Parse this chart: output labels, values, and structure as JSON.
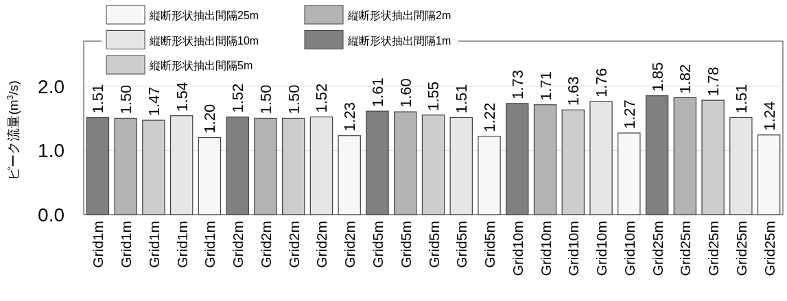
{
  "chart_data": {
    "type": "bar",
    "ylabel": "ピーク流量(m$^{3}$/s)",
    "categories": [
      "Grid1m",
      "Grid1m",
      "Grid1m",
      "Grid1m",
      "Grid1m",
      "Grid2m",
      "Grid2m",
      "Grid2m",
      "Grid2m",
      "Grid2m",
      "Grid5m",
      "Grid5m",
      "Grid5m",
      "Grid5m",
      "Grid5m",
      "Grid10m",
      "Grid10m",
      "Grid10m",
      "Grid10m",
      "Grid10m",
      "Grid25m",
      "Grid25m",
      "Grid25m",
      "Grid25m",
      "Grid25m"
    ],
    "series": [
      {
        "name": "縦断形状抽出間隔1m",
        "color": "#808080",
        "values": [
          1.51,
          null,
          null,
          null,
          null,
          1.52,
          null,
          null,
          null,
          null,
          1.61,
          null,
          null,
          null,
          null,
          1.73,
          null,
          null,
          null,
          null,
          1.85,
          null,
          null,
          null,
          null
        ],
        "value_labels": [
          "1.51",
          null,
          null,
          null,
          null,
          "1.52",
          null,
          null,
          null,
          null,
          "1.61",
          null,
          null,
          null,
          null,
          "1.73",
          null,
          null,
          null,
          null,
          "1.85",
          null,
          null,
          null,
          null
        ]
      },
      {
        "name": "縦断形状抽出間隔2m",
        "color": "#b4b4b4",
        "values": [
          null,
          1.5,
          null,
          null,
          null,
          null,
          1.5,
          null,
          null,
          null,
          null,
          1.6,
          null,
          null,
          null,
          null,
          1.71,
          null,
          null,
          null,
          null,
          1.82,
          null,
          null,
          null
        ],
        "value_labels": [
          null,
          "1.50",
          null,
          null,
          null,
          null,
          "1.50",
          null,
          null,
          null,
          null,
          "1.60",
          null,
          null,
          null,
          null,
          "1.71",
          null,
          null,
          null,
          null,
          "1.82",
          null,
          null,
          null
        ]
      },
      {
        "name": "縦断形状抽出間隔5m",
        "color": "#cdcdcd",
        "values": [
          null,
          null,
          1.47,
          null,
          null,
          null,
          null,
          1.5,
          null,
          null,
          null,
          null,
          1.55,
          null,
          null,
          null,
          null,
          1.63,
          null,
          null,
          null,
          null,
          1.78,
          null,
          null
        ],
        "value_labels": [
          null,
          null,
          "1.47",
          null,
          null,
          null,
          null,
          "1.50",
          null,
          null,
          null,
          null,
          "1.55",
          null,
          null,
          null,
          null,
          "1.63",
          null,
          null,
          null,
          null,
          "1.78",
          null,
          null
        ]
      },
      {
        "name": "縦断形状抽出間隔10m",
        "color": "#e6e6e6",
        "values": [
          null,
          null,
          null,
          1.54,
          null,
          null,
          null,
          null,
          1.52,
          null,
          null,
          null,
          null,
          1.51,
          null,
          null,
          null,
          null,
          1.76,
          null,
          null,
          null,
          null,
          1.51,
          null
        ],
        "value_labels": [
          null,
          null,
          null,
          "1.54",
          null,
          null,
          null,
          null,
          "1.52",
          null,
          null,
          null,
          null,
          "1.51",
          null,
          null,
          null,
          null,
          "1.76",
          null,
          null,
          null,
          null,
          "1.51",
          null
        ]
      },
      {
        "name": "縦断形状抽出間隔25m",
        "color": "#f7f7f7",
        "values": [
          null,
          null,
          null,
          null,
          1.2,
          null,
          null,
          null,
          null,
          1.23,
          null,
          null,
          null,
          null,
          1.22,
          null,
          null,
          null,
          null,
          1.27,
          null,
          null,
          null,
          null,
          1.24
        ],
        "value_labels": [
          null,
          null,
          null,
          null,
          "1.20",
          null,
          null,
          null,
          null,
          "1.23",
          null,
          null,
          null,
          null,
          "1.22",
          null,
          null,
          null,
          null,
          "1.27",
          null,
          null,
          null,
          null,
          "1.24"
        ]
      }
    ],
    "ylim": [
      0,
      2.7
    ],
    "yticks": [
      {
        "value": 0,
        "label": "0.0"
      },
      {
        "value": 1,
        "label": "1.0"
      },
      {
        "value": 2,
        "label": "2.0"
      }
    ],
    "grid": "y",
    "legend": "top left"
  }
}
